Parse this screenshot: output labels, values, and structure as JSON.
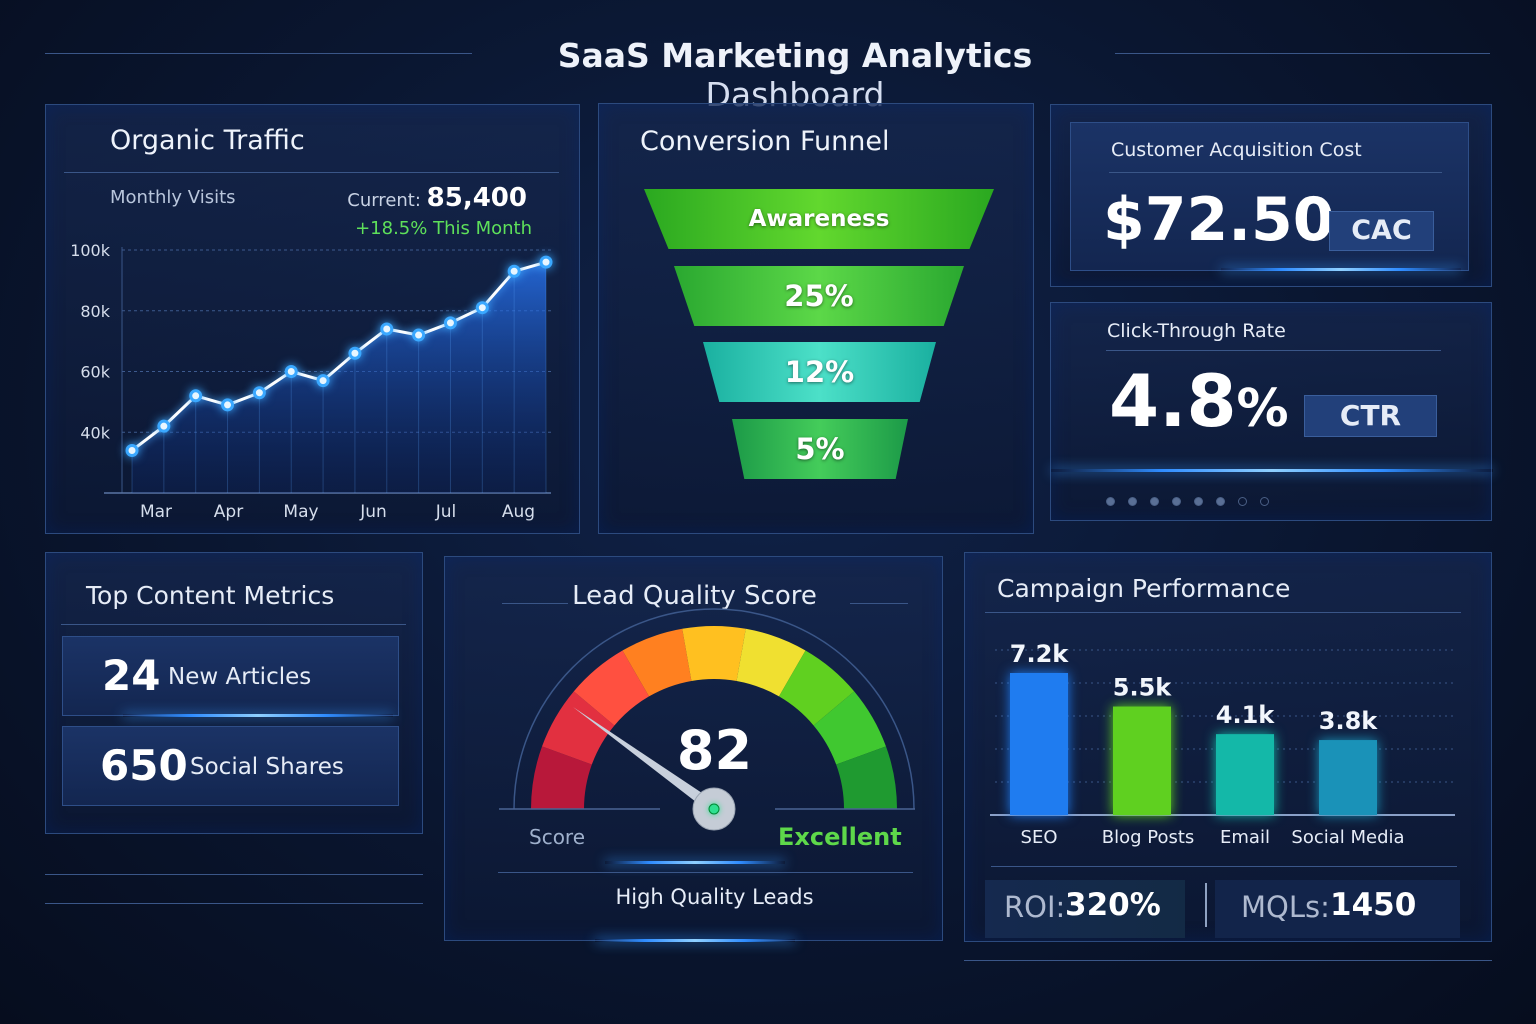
{
  "header": {
    "title_bold": "SaaS Marketing Analytics",
    "title_light": "Dashboard"
  },
  "organic": {
    "title": "Organic Traffic",
    "subtitle": "Monthly Visits",
    "current_label": "Current:",
    "current_value": "85,400",
    "change": "+18.5% This Month",
    "change_color": "#5ee05a"
  },
  "chart_data": {
    "type": "line",
    "title": "",
    "xlabel": "",
    "ylabel": "",
    "x_ticks": [
      "Mar",
      "Apr",
      "May",
      "Jun",
      "Jul",
      "Aug"
    ],
    "y_ticks": [
      "40k",
      "60k",
      "80k",
      "100k"
    ],
    "ylim": [
      20000,
      100000
    ],
    "grid": true,
    "values": [
      34000,
      42000,
      52000,
      49000,
      53000,
      60000,
      57000,
      66000,
      74000,
      72000,
      76000,
      81000,
      93000,
      96000
    ],
    "line_color": "#ffffff",
    "fill_color": "#1f6fff"
  },
  "funnel": {
    "title": "Conversion Funnel",
    "stages": [
      {
        "label": "Awareness",
        "color": "#3fbf2a"
      },
      {
        "label": "25%",
        "color": "#45c83a"
      },
      {
        "label": "12%",
        "color": "#2fc4b0"
      },
      {
        "label": "5%",
        "color": "#2cb05a"
      }
    ]
  },
  "cac": {
    "title": "Customer Acquisition Cost",
    "value": "$72.50",
    "badge": "CAC"
  },
  "ctr": {
    "title": "Click-Through Rate",
    "value": "4.8",
    "unit": "%",
    "badge": "CTR",
    "pager_pages": 8,
    "pager_active": 0
  },
  "content": {
    "title": "Top Content Metrics",
    "items": [
      {
        "value": "24",
        "label": "New Articles"
      },
      {
        "value": "650",
        "label": "Social Shares"
      }
    ]
  },
  "lead": {
    "title": "Lead Quality Score",
    "score": "82",
    "score_value": 82,
    "left_label": "Score",
    "right_label": "Excellent",
    "right_color": "#5ed84a",
    "footer": "High Quality Leads"
  },
  "campaign": {
    "title": "Campaign Performance",
    "bars": [
      {
        "label": "SEO",
        "value": 7.2,
        "text": "7.2k",
        "color": "#1f7cf0"
      },
      {
        "label": "Blog Posts",
        "value": 5.5,
        "text": "5.5k",
        "color": "#5fd020"
      },
      {
        "label": "Email",
        "value": 4.1,
        "text": "4.1k",
        "color": "#14b8a8"
      },
      {
        "label": "Social Media",
        "value": 3.8,
        "text": "3.8k",
        "color": "#1a92b8"
      }
    ],
    "roi_label": "ROI:",
    "roi_value": "320%",
    "mql_label": "MQLs:",
    "mql_value": "1450"
  }
}
